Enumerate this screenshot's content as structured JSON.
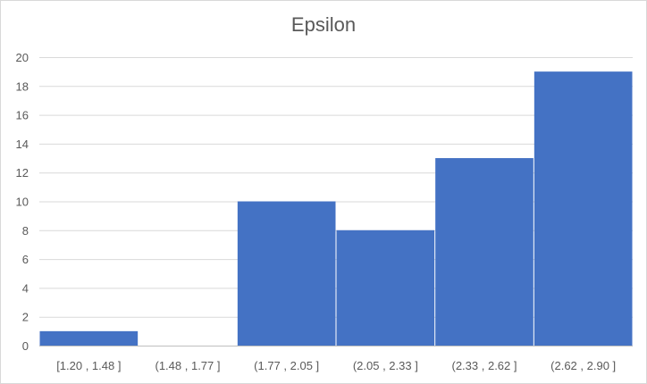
{
  "chart_data": {
    "type": "bar",
    "title": "Epsilon",
    "categories": [
      "[1.20 , 1.48 ]",
      "(1.48 , 1.77 ]",
      "(1.77 , 2.05 ]",
      "(2.05 , 2.33 ]",
      "(2.33 , 2.62 ]",
      "(2.62 , 2.90 ]"
    ],
    "values": [
      1,
      0,
      10,
      8,
      13,
      19
    ],
    "ylim": [
      0,
      20
    ],
    "yticks": [
      0,
      2,
      4,
      6,
      8,
      10,
      12,
      14,
      16,
      18,
      20
    ],
    "grid": true,
    "bar_color": "#4472c4",
    "grid_color": "#d9d9d9"
  }
}
